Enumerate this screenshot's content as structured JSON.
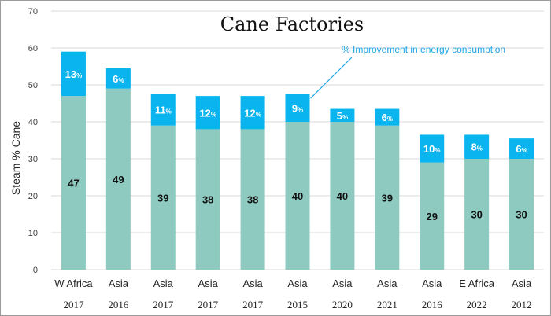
{
  "colors": {
    "base": "#8ecac0",
    "improvement": "#0ab4ee",
    "grid": "#d9d9d9",
    "annotation": "#1ea6e6"
  },
  "chart_data": {
    "type": "bar",
    "stacked": true,
    "title": "Cane Factories",
    "ylabel": "Steam % Cane",
    "xlabel": "",
    "ylim": [
      0,
      70
    ],
    "yticks": [
      0,
      10,
      20,
      30,
      40,
      50,
      60,
      70
    ],
    "grid": true,
    "annotation": "% Improvement in energy consumption",
    "annotation_target_index": 5,
    "categories": [
      {
        "region": "W Africa",
        "year": "2017"
      },
      {
        "region": "Asia",
        "year": "2016"
      },
      {
        "region": "Asia",
        "year": "2017"
      },
      {
        "region": "Asia",
        "year": "2017"
      },
      {
        "region": "Asia",
        "year": "2017"
      },
      {
        "region": "Asia",
        "year": "2015"
      },
      {
        "region": "Asia",
        "year": "2020"
      },
      {
        "region": "Asia",
        "year": "2021"
      },
      {
        "region": "Asia",
        "year": "2016"
      },
      {
        "region": "E Africa",
        "year": "2022"
      },
      {
        "region": "Asia",
        "year": "2012"
      }
    ],
    "series": [
      {
        "values": [
          47,
          49,
          39,
          38,
          38,
          40,
          40,
          39,
          29,
          30,
          30
        ],
        "labels": [
          "47",
          "49",
          "39",
          "38",
          "38",
          "40",
          "40",
          "39",
          "29",
          "30",
          "30"
        ]
      },
      {
        "values": [
          12,
          5.5,
          8.5,
          9,
          9,
          7.5,
          3.5,
          4.5,
          7.5,
          6.5,
          5.5
        ],
        "labels": [
          "13",
          "6",
          "11",
          "12",
          "12",
          "9",
          "5",
          "6",
          "10",
          "8",
          "6"
        ],
        "unit": "%"
      }
    ]
  }
}
